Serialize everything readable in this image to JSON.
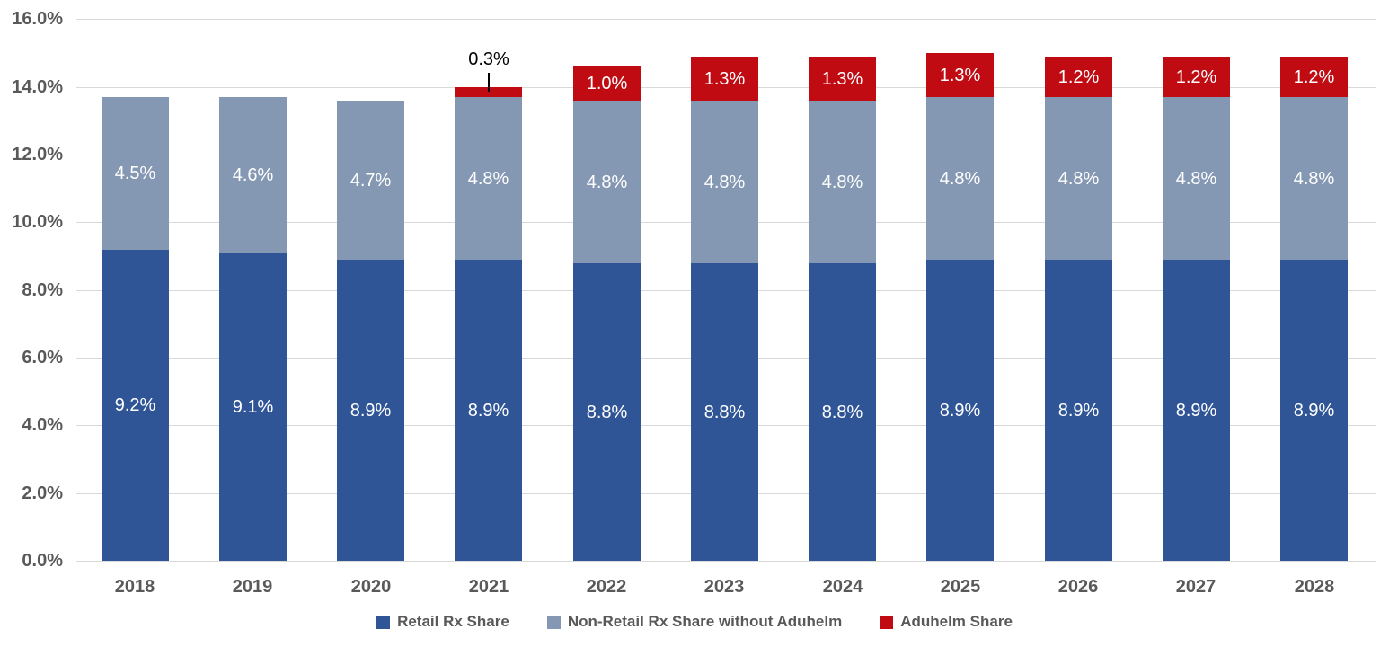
{
  "chart_data": {
    "type": "bar",
    "stacked": true,
    "title": "",
    "xlabel": "",
    "ylabel": "",
    "grid": true,
    "legend_position": "bottom-center",
    "categories": [
      "2018",
      "2019",
      "2020",
      "2021",
      "2022",
      "2023",
      "2024",
      "2025",
      "2026",
      "2027",
      "2028"
    ],
    "series": [
      {
        "name": "Retail Rx Share",
        "color": "#2F5597",
        "values": [
          9.2,
          9.1,
          8.9,
          8.9,
          8.8,
          8.8,
          8.8,
          8.9,
          8.9,
          8.9,
          8.9
        ]
      },
      {
        "name": "Non-Retail Rx Share without Aduhelm",
        "color": "#8498B3",
        "values": [
          4.5,
          4.6,
          4.7,
          4.8,
          4.8,
          4.8,
          4.8,
          4.8,
          4.8,
          4.8,
          4.8
        ]
      },
      {
        "name": "Aduhelm Share",
        "color": "#C00B13",
        "values": [
          null,
          null,
          null,
          0.3,
          1.0,
          1.3,
          1.3,
          1.3,
          1.2,
          1.2,
          1.2
        ]
      }
    ],
    "y_axis": {
      "min": 0,
      "max": 16,
      "step": 2,
      "tick_labels": [
        "0.0%",
        "2.0%",
        "4.0%",
        "6.0%",
        "8.0%",
        "10.0%",
        "12.0%",
        "14.0%",
        "16.0%"
      ]
    },
    "callout": {
      "category": "2021",
      "series_index": 2,
      "label": "0.3%"
    },
    "colors": {
      "gridline": "#D9D9D9",
      "axis_text": "#595959",
      "data_label_text": "#FFFFFF",
      "callout_text": "#000000"
    }
  }
}
